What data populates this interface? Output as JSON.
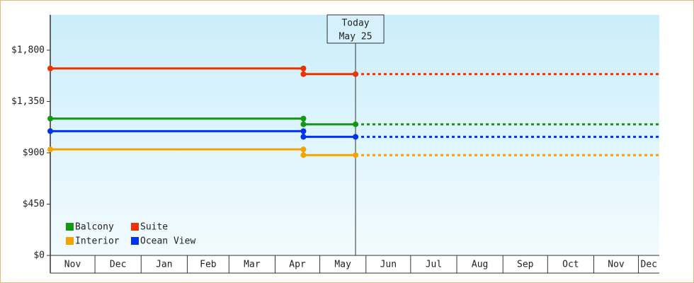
{
  "chart_data": {
    "type": "line",
    "x": [
      "Nov 1",
      "Apr 20",
      "Apr 20",
      "May 25",
      "Dec 15"
    ],
    "xlim": [
      "Nov 1",
      "Dec 15"
    ],
    "xticks": [
      "Nov",
      "Dec",
      "Jan",
      "Feb",
      "Mar",
      "Apr",
      "May",
      "Jun",
      "Jul",
      "Aug",
      "Sep",
      "Oct",
      "Nov",
      "Dec"
    ],
    "ylim": [
      0,
      2110
    ],
    "yticks": [
      {
        "value": 0,
        "label": "$0"
      },
      {
        "value": 450,
        "label": "$450"
      },
      {
        "value": 900,
        "label": "$900"
      },
      {
        "value": 1350,
        "label": "$1,350"
      },
      {
        "value": 1800,
        "label": "$1,800"
      }
    ],
    "annotation": {
      "label": "Today",
      "date": "May 25"
    },
    "legend": "bottom-left",
    "series": [
      {
        "name": "Balcony",
        "color": "#119911",
        "values": [
          1200,
          1200,
          1150,
          1150,
          1150
        ]
      },
      {
        "name": "Suite",
        "color": "#ee3300",
        "values": [
          1640,
          1640,
          1590,
          1590,
          1590
        ]
      },
      {
        "name": "Interior",
        "color": "#f5a300",
        "values": [
          930,
          930,
          880,
          880,
          880
        ]
      },
      {
        "name": "Ocean View",
        "color": "#0033ee",
        "values": [
          1090,
          1090,
          1040,
          1040,
          1040
        ]
      }
    ]
  }
}
